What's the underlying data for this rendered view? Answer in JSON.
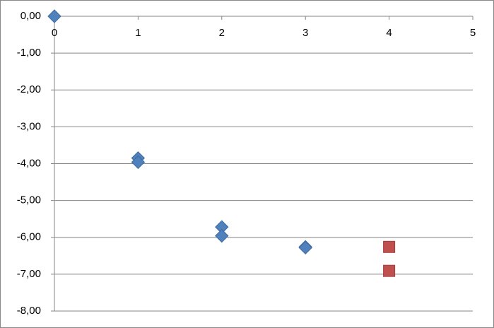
{
  "chart_data": {
    "type": "scatter",
    "series": [
      {
        "color": "#4f81bd",
        "marker": "diamond",
        "x": [
          0,
          1,
          1,
          2,
          2,
          3,
          3
        ],
        "values": [
          0,
          -3.85,
          -3.96,
          -5.72,
          -5.96,
          -6.26,
          -6.28
        ]
      },
      {
        "color": "#c0504d",
        "marker": "square",
        "x": [
          4,
          4
        ],
        "values": [
          -6.26,
          -6.91
        ]
      }
    ],
    "xlim": [
      0,
      5
    ],
    "xticks": [
      0,
      1,
      2,
      3,
      4,
      5
    ],
    "ylim": [
      -8,
      0
    ],
    "yticks": [
      {
        "value": 0,
        "label": "0,00"
      },
      {
        "value": -1,
        "label": "-1,00"
      },
      {
        "value": -2,
        "label": "-2,00"
      },
      {
        "value": -3,
        "label": "-3,00"
      },
      {
        "value": -4,
        "label": "-4,00"
      },
      {
        "value": -5,
        "label": "-5,00"
      },
      {
        "value": -6,
        "label": "-6,00"
      },
      {
        "value": -7,
        "label": "-7,00"
      },
      {
        "value": -8,
        "label": "-8,00"
      }
    ],
    "grid": true
  }
}
